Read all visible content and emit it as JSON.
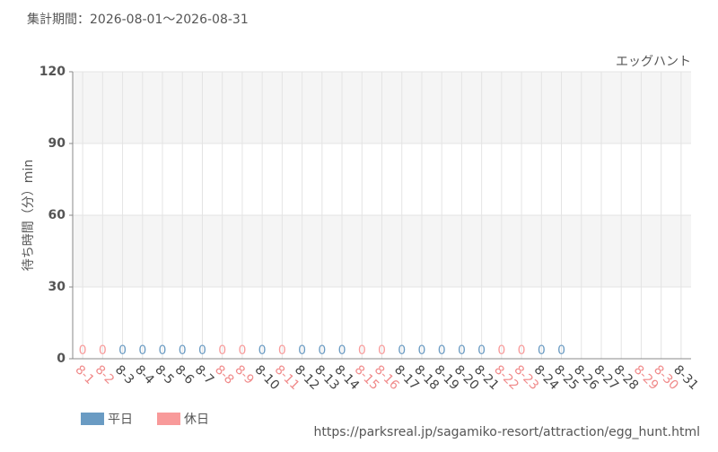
{
  "chart_data": {
    "type": "bar",
    "title": "集計期間：2026-08-01～2026-08-31",
    "subtitle": "エッグハント",
    "y_label": "待ち時間（分）min",
    "source": "https://parksreal.jp/sagamiko-resort/attraction/egg_hunt.html",
    "categories": [
      "8-1",
      "8-2",
      "8-3",
      "8-4",
      "8-5",
      "8-6",
      "8-7",
      "8-8",
      "8-9",
      "8-10",
      "8-11",
      "8-12",
      "8-13",
      "8-14",
      "8-15",
      "8-16",
      "8-17",
      "8-18",
      "8-19",
      "8-20",
      "8-21",
      "8-22",
      "8-23",
      "8-24",
      "8-25",
      "8-26",
      "8-27",
      "8-28",
      "8-29",
      "8-30",
      "8-31"
    ],
    "category_colors": [
      "#f08a8a",
      "#f08a8a",
      "#444444",
      "#444444",
      "#444444",
      "#444444",
      "#444444",
      "#f08a8a",
      "#f08a8a",
      "#444444",
      "#f08a8a",
      "#444444",
      "#444444",
      "#444444",
      "#f08a8a",
      "#f08a8a",
      "#444444",
      "#444444",
      "#444444",
      "#444444",
      "#444444",
      "#f08a8a",
      "#f08a8a",
      "#444444",
      "#444444",
      "#444444",
      "#444444",
      "#444444",
      "#f08a8a",
      "#f08a8a",
      "#444444"
    ],
    "series": [
      {
        "name": "平日",
        "color": "#6a9bc3",
        "values": [
          null,
          null,
          0,
          0,
          0,
          0,
          0,
          null,
          null,
          0,
          null,
          0,
          0,
          0,
          null,
          null,
          0,
          0,
          0,
          0,
          0,
          null,
          null,
          0,
          0,
          null,
          null,
          null,
          null,
          null,
          null
        ]
      },
      {
        "name": "休日",
        "color": "#f89a9a",
        "values": [
          0,
          0,
          null,
          null,
          null,
          null,
          null,
          0,
          0,
          null,
          0,
          null,
          null,
          null,
          0,
          0,
          null,
          null,
          null,
          null,
          null,
          0,
          0,
          null,
          null,
          null,
          null,
          null,
          null,
          null,
          null
        ]
      }
    ],
    "ylim": [
      0,
      120
    ],
    "yticks": [
      0,
      30,
      60,
      90,
      120
    ],
    "grid": true
  }
}
